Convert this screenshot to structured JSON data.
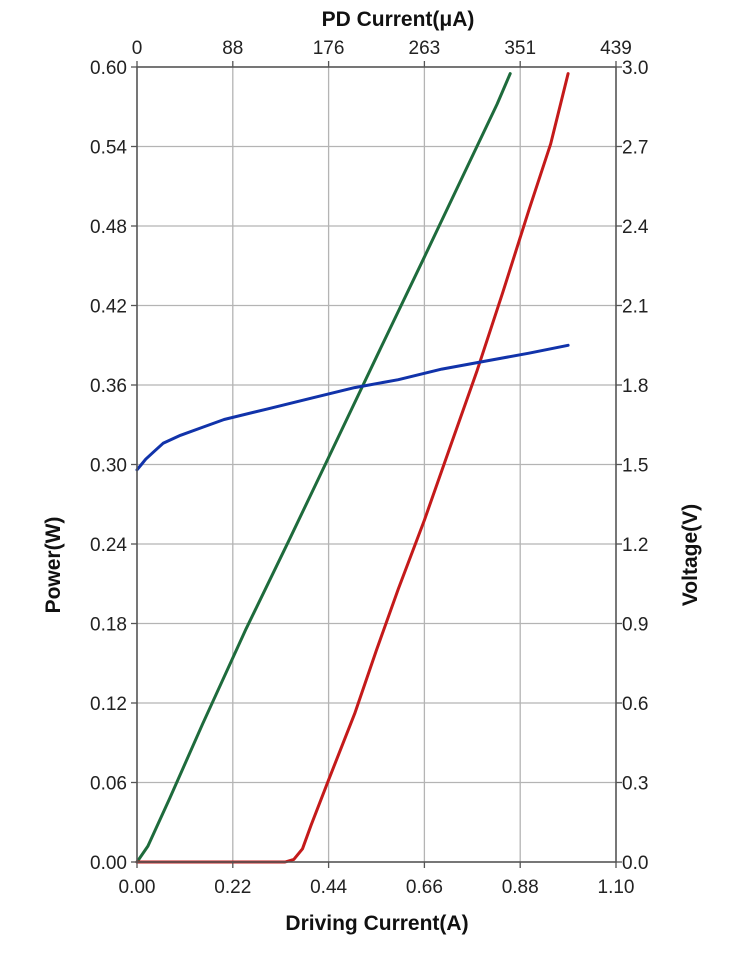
{
  "chart_data": {
    "type": "line",
    "title": "",
    "xlabel": "Driving Current(A)",
    "x2label": "PD Current(μA)",
    "ylabel": "Power(W)",
    "y2label": "Voltage(V)",
    "xlim": [
      0,
      1.1
    ],
    "ylim": [
      0,
      0.6
    ],
    "y2lim": [
      0,
      3.0
    ],
    "x2lim": [
      0,
      439
    ],
    "x_ticks": [
      "0.00",
      "0.22",
      "0.44",
      "0.66",
      "0.88",
      "1.10"
    ],
    "x2_ticks": [
      "0",
      "88",
      "176",
      "263",
      "351",
      "439"
    ],
    "y_ticks": [
      "0.00",
      "0.06",
      "0.12",
      "0.18",
      "0.24",
      "0.30",
      "0.36",
      "0.42",
      "0.48",
      "0.54",
      "0.60"
    ],
    "y2_ticks": [
      "0.0",
      "0.3",
      "0.6",
      "0.9",
      "1.2",
      "1.5",
      "1.8",
      "2.1",
      "2.4",
      "2.7",
      "3.0"
    ],
    "grid": true,
    "series": [
      {
        "name": "PD Current",
        "axis": "x2-left",
        "color": "#1e6b3c",
        "x": [
          0,
          10,
          30,
          60,
          100,
          140,
          176,
          220,
          263,
          300,
          330,
          342
        ],
        "y": [
          0,
          0.012,
          0.048,
          0.104,
          0.176,
          0.244,
          0.306,
          0.382,
          0.456,
          0.52,
          0.572,
          0.595
        ]
      },
      {
        "name": "Power",
        "axis": "x-left",
        "color": "#c41a1a",
        "x": [
          0,
          0.2,
          0.34,
          0.36,
          0.38,
          0.4,
          0.44,
          0.5,
          0.55,
          0.6,
          0.66,
          0.72,
          0.78,
          0.84,
          0.9,
          0.95,
          0.99
        ],
        "y": [
          0,
          0,
          0,
          0.002,
          0.01,
          0.028,
          0.062,
          0.112,
          0.16,
          0.206,
          0.258,
          0.314,
          0.37,
          0.43,
          0.492,
          0.542,
          0.595
        ]
      },
      {
        "name": "Voltage",
        "axis": "x-right",
        "color": "#1133aa",
        "x": [
          0,
          0.01,
          0.02,
          0.04,
          0.06,
          0.1,
          0.15,
          0.2,
          0.3,
          0.4,
          0.5,
          0.6,
          0.7,
          0.8,
          0.9,
          0.99
        ],
        "y": [
          1.48,
          1.5,
          1.52,
          1.55,
          1.58,
          1.61,
          1.64,
          1.67,
          1.71,
          1.75,
          1.79,
          1.82,
          1.86,
          1.89,
          1.92,
          1.95
        ]
      }
    ]
  }
}
